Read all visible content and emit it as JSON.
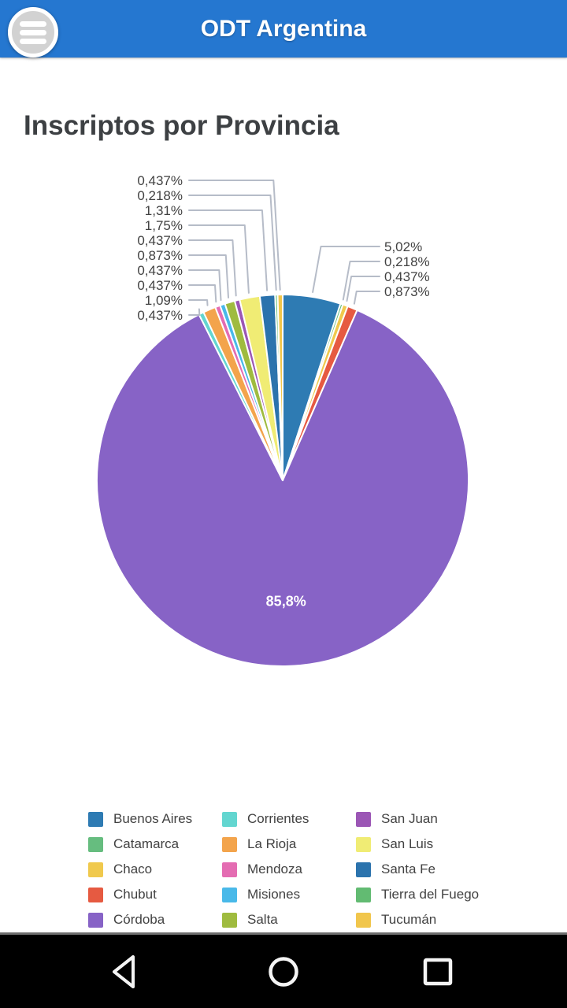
{
  "header": {
    "title": "ODT Argentina",
    "menu_icon": "hamburger-icon"
  },
  "page": {
    "title": "Inscriptos por Provincia"
  },
  "chart_data": {
    "type": "pie",
    "title": "Inscriptos por Provincia",
    "unit": "%",
    "direction": "clockwise",
    "start_angle_deg": 0,
    "inside_label": "85,8%",
    "callout_line_color": "#b6bcc8",
    "callout_text_color": "#424242",
    "slices": [
      {
        "label": "Buenos Aires",
        "value": 5.02,
        "display": "5,02%",
        "color": "#2e7bb3",
        "callout": "right"
      },
      {
        "label": "Catamarca",
        "value": 0.218,
        "display": "0,218%",
        "color": "#66bd7f",
        "callout": "right"
      },
      {
        "label": "Chaco",
        "value": 0.437,
        "display": "0,437%",
        "color": "#f0c94d",
        "callout": "right"
      },
      {
        "label": "Chubut",
        "value": 0.873,
        "display": "0,873%",
        "color": "#e65a41",
        "callout": "right"
      },
      {
        "label": "Córdoba",
        "value": 85.8,
        "display": "85,8%",
        "color": "#8763c6",
        "callout": "inside"
      },
      {
        "label": "Corrientes",
        "value": 0.437,
        "display": "0,437%",
        "color": "#63d6d0",
        "callout": "left"
      },
      {
        "label": "La Rioja",
        "value": 1.09,
        "display": "1,09%",
        "color": "#f3a44c",
        "callout": "left"
      },
      {
        "label": "Mendoza",
        "value": 0.437,
        "display": "0,437%",
        "color": "#e46cb2",
        "callout": "left"
      },
      {
        "label": "Misiones",
        "value": 0.437,
        "display": "0,437%",
        "color": "#49b9e9",
        "callout": "left"
      },
      {
        "label": "Salta",
        "value": 0.873,
        "display": "0,873%",
        "color": "#9fbb3f",
        "callout": "left"
      },
      {
        "label": "San Juan",
        "value": 0.437,
        "display": "0,437%",
        "color": "#9b56b5",
        "callout": "left"
      },
      {
        "label": "San Luis",
        "value": 1.75,
        "display": "1,75%",
        "color": "#f0ec74",
        "callout": "left"
      },
      {
        "label": "Santa Fe",
        "value": 1.31,
        "display": "1,31%",
        "color": "#2b73ad",
        "callout": "left"
      },
      {
        "label": "Tierra del Fuego",
        "value": 0.218,
        "display": "0,218%",
        "color": "#62bb72",
        "callout": "left"
      },
      {
        "label": "Tucumán",
        "value": 0.437,
        "display": "0,437%",
        "color": "#f1c64c",
        "callout": "left"
      }
    ],
    "legend": {
      "position": "bottom",
      "columns": 3,
      "flow": "column-major"
    }
  },
  "nav_bar": {
    "back_icon": "back-icon",
    "home_icon": "home-icon",
    "recents_icon": "recents-icon"
  }
}
